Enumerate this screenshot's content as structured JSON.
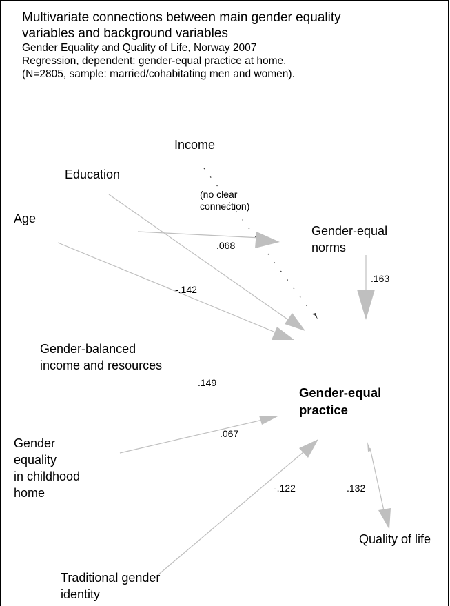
{
  "header": {
    "title_line1": "Multivariate connections between main gender equality",
    "title_line2": "variables and background variables",
    "sub_line1": "Gender Equality and Quality of Life, Norway 2007",
    "sub_line2": "Regression, dependent: gender-equal practice at home.",
    "sub_line3": "(N=2805, sample: married/cohabitating men and women)."
  },
  "nodes": {
    "income": "Income",
    "income_note_1": "(no clear",
    "income_note_2": "connection)",
    "education": "Education",
    "age": "Age",
    "norms_1": "Gender-equal",
    "norms_2": "norms",
    "resources_1": "Gender-balanced",
    "resources_2": "income and resources",
    "childhood_1": "Gender",
    "childhood_2": "equality",
    "childhood_3": "in childhood",
    "childhood_4": "home",
    "traditional_1": "Traditional gender",
    "traditional_2": "identity",
    "practice_1": "Gender-equal",
    "practice_2": "practice",
    "quality": "Quality of life"
  },
  "coefficients": {
    "education": ".068",
    "age": "-.142",
    "norms": ".163",
    "resources": ".149",
    "childhood": ".067",
    "traditional": "-.122",
    "quality": ".132"
  },
  "colors": {
    "arrow": "#bfbfbf",
    "dotted": "#333333",
    "text": "#000000"
  }
}
